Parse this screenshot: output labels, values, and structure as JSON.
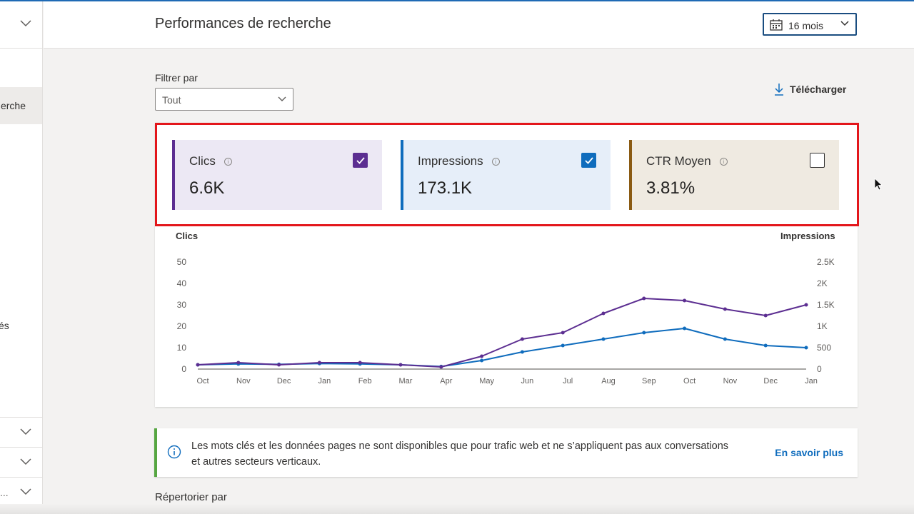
{
  "header": {
    "title": "Performances de recherche",
    "period": {
      "icon": "calendar-icon",
      "label": "16 mois"
    }
  },
  "sidebar": {
    "active_item_label": "erche",
    "item_label_fragment": "és",
    "truncated_label": "..."
  },
  "filter": {
    "label": "Filtrer par",
    "value": "Tout"
  },
  "download": {
    "icon": "download-icon",
    "label": "Télécharger"
  },
  "metrics": [
    {
      "name": "Clics",
      "value": "6.6K",
      "checked": true,
      "color": "#5c2e91"
    },
    {
      "name": "Impressions",
      "value": "173.1K",
      "checked": true,
      "color": "#0f6cbd"
    },
    {
      "name": "CTR Moyen",
      "value": "3.81%",
      "checked": false,
      "color": "#8a5a12"
    }
  ],
  "chart_data": {
    "type": "line",
    "left_axis_label": "Clics",
    "right_axis_label": "Impressions",
    "left_ticks": [
      "50",
      "40",
      "30",
      "20",
      "10",
      "0"
    ],
    "right_ticks": [
      "2.5K",
      "2K",
      "1.5K",
      "1K",
      "500",
      "0"
    ],
    "x_labels": [
      "Oct",
      "Nov",
      "Dec",
      "Jan",
      "Feb",
      "Mar",
      "Apr",
      "May",
      "Jun",
      "Jul",
      "Aug",
      "Sep",
      "Oct",
      "Nov",
      "Dec",
      "Jan"
    ],
    "ylim_left": [
      0,
      50
    ],
    "ylim_right": [
      0,
      2500
    ],
    "series": [
      {
        "name": "Clics",
        "axis": "left",
        "color": "#5c2e91",
        "x": [
          "Oct",
          "Nov",
          "Dec",
          "Jan",
          "Feb",
          "Mar",
          "Apr",
          "May",
          "Jun",
          "Jul",
          "Aug",
          "Sep",
          "Oct",
          "Nov",
          "Dec",
          "Jan"
        ],
        "values": [
          2,
          3,
          2,
          3,
          3,
          2,
          1,
          6,
          14,
          17,
          26,
          33,
          32,
          28,
          25,
          30
        ]
      },
      {
        "name": "Impressions",
        "axis": "right",
        "color": "#0f6cbd",
        "x": [
          "Oct",
          "Nov",
          "Dec",
          "Jan",
          "Feb",
          "Mar",
          "Apr",
          "May",
          "Jun",
          "Jul",
          "Aug",
          "Sep",
          "Oct",
          "Nov",
          "Dec",
          "Jan"
        ],
        "values": [
          100,
          120,
          110,
          130,
          120,
          100,
          60,
          200,
          400,
          550,
          700,
          850,
          950,
          700,
          550,
          500
        ]
      }
    ]
  },
  "notice": {
    "icon": "info-circle-icon",
    "text": "Les mots clés et les données pages ne sont disponibles que pour trafic web et ne s’appliquent pas aux conversations et autres secteurs verticaux.",
    "link": "En savoir plus"
  },
  "list_by_label": "Répertorier par"
}
